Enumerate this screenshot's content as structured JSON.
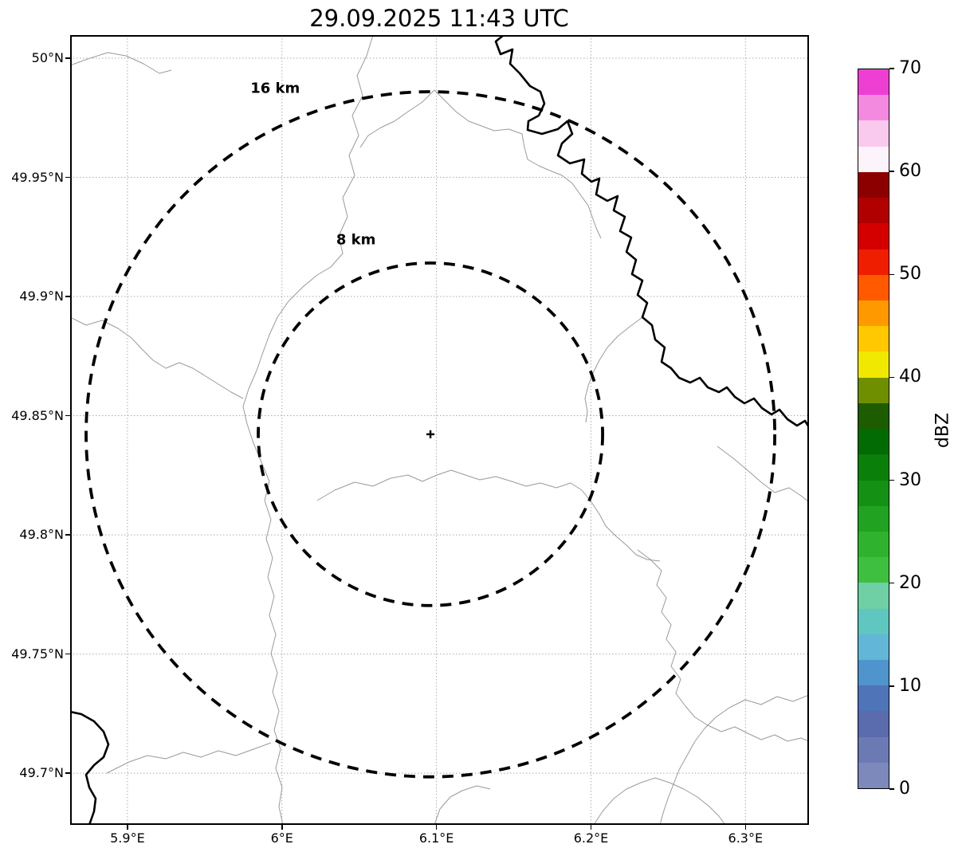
{
  "title": "29.09.2025 11:43 UTC",
  "chart_data": {
    "type": "map",
    "subtype": "weather-radar-range-ring-map",
    "title": "29.09.2025 11:43 UTC",
    "grid": true,
    "x_axis": {
      "tick_labels": [
        "5.9°E",
        "6°E",
        "6.1°E",
        "6.2°E",
        "6.3°E"
      ],
      "tick_values": [
        5.9,
        6.0,
        6.1,
        6.2,
        6.3
      ],
      "range": [
        5.8629,
        6.3411
      ]
    },
    "y_axis": {
      "tick_labels": [
        "50°N",
        "49.95°N",
        "49.9°N",
        "49.85°N",
        "49.8°N",
        "49.75°N",
        "49.7°N"
      ],
      "tick_values": [
        50.0,
        49.95,
        49.9,
        49.85,
        49.8,
        49.75,
        49.7
      ],
      "range": [
        49.6783,
        50.0097
      ]
    },
    "radar_center": {
      "lon": 6.0961,
      "lat": 49.8422,
      "marker": "+"
    },
    "range_rings": [
      {
        "km": 8,
        "label": "8 km"
      },
      {
        "km": 16,
        "label": "16 km"
      }
    ],
    "reflectivity_echoes": [],
    "colorbar": {
      "label": "dBZ",
      "min": 0,
      "max": 70,
      "tick_values": [
        0,
        10,
        20,
        30,
        40,
        50,
        60,
        70
      ],
      "tick_labels": [
        "0",
        "10",
        "20",
        "30",
        "40",
        "50",
        "60",
        "70"
      ],
      "segment_step": 2.5,
      "segment_colors_bottom_to_top": [
        "#7d88bb",
        "#6c7ab4",
        "#5a6cae",
        "#4f74b8",
        "#4f94cd",
        "#62b6d8",
        "#5fc6c0",
        "#6ed0a4",
        "#3fbf3f",
        "#2fb32f",
        "#21a321",
        "#149114",
        "#0a7f0a",
        "#036b03",
        "#1d5c00",
        "#6f8f00",
        "#f0e800",
        "#ffc800",
        "#ff9900",
        "#ff5a00",
        "#f01e00",
        "#d40000",
        "#b00000",
        "#8c0000",
        "#fdf3fb",
        "#f9c9ee",
        "#f48ae0",
        "#ee3fd3"
      ]
    },
    "map_paths": {
      "coordinate_space": "plot-pixels 927x991",
      "thin_gray_borders": [
        "M 0 38 L 22 30 L 47 22 L 70 26 L 92 36 L 112 48 L 127 44",
        "M 380 0 L 372 26 L 360 51 L 367 76 L 354 101 L 362 126 L 350 151 L 357 176 L 342 204 L 348 228 L 337 252 L 342 274 L 327 291 L 310 301 L 292 316 L 274 334 L 260 354 L 250 376 L 242 398 L 234 421 L 224 444 L 217 466 L 222 488 L 230 512 L 240 536 L 250 560 L 244 584 L 252 608 L 246 632 L 254 656 L 248 680 L 256 704 L 250 728 L 258 752 L 252 776 L 260 800 L 254 824 L 262 848 L 256 872 L 264 896 L 258 920 L 266 944 L 262 968 L 267 991",
        "M 457 69 L 442 84 L 424 96 L 407 108 L 390 116 L 374 126 L 364 141",
        "M 457 69 L 470 82 L 484 96 L 500 108 L 516 114 L 532 120 L 550 118 L 567 124 L 570 141 L 574 156 L 588 164 L 602 170 L 617 176 L 630 186 L 640 200 L 650 214 L 655 228 L 660 242 L 666 255",
        "M 310 584 L 332 571 L 357 561 L 380 566 L 402 556 L 424 552 L 442 560 L 460 552 L 478 546 L 496 552 L 514 558 L 534 554 L 554 560 L 572 566 L 590 562 L 610 568 L 628 562 L 642 571 L 654 586 L 664 601 L 672 616 L 684 628 L 698 640 L 710 652 L 724 658 L 740 660",
        "M 812 516 L 832 531 L 850 546 L 867 561 L 884 574 L 902 568 L 917 578 L 927 586",
        "M 712 646 L 728 658 L 742 672 L 736 690 L 748 706 L 742 724 L 754 740 L 748 758 L 760 774 L 754 792 L 766 808 L 760 826 L 772 842 L 784 856 L 800 866 L 817 874 L 834 868 L 850 876 L 867 884 L 884 878 L 900 886 L 917 882 L 927 886",
        "M 927 828 L 907 836 L 887 830 L 867 840 L 847 834 L 827 844 L 810 856 L 796 870 L 784 886 L 774 904 L 764 922 L 757 940 L 750 958 L 744 976 L 740 991",
        "M 657 991 L 668 974 L 682 958 L 698 946 L 716 938 L 734 932 L 752 938 L 770 946 L 787 956 L 802 968 L 814 980 L 822 991",
        "M 46 926 L 74 912 L 97 904 L 120 908 L 142 900 L 164 906 L 186 898 L 208 904 L 230 896 L 252 888",
        "M 457 991 L 464 971 L 477 956 L 492 948 L 510 942 L 527 946",
        "M 0 354 L 20 364 L 40 358 L 60 368 L 77 380 L 90 394 L 104 408 L 120 418 L 137 411 L 154 418 L 170 428 L 186 438 L 202 448 L 217 456",
        "M 718 354 L 702 366 L 687 378 L 674 392 L 664 408 L 656 424 L 650 440 L 646 456 L 649 472 L 647 486"
      ],
      "thick_black_borders": [
        "M 544 0 L 534 8 L 540 24 L 555 18 L 552 36 L 564 48 L 577 64 L 590 71 L 595 86 L 588 101 L 575 108 L 574 119 L 592 124 L 612 118 L 624 108 L 630 124 L 617 136 L 612 151 L 627 161 L 645 156 L 642 174 L 654 184 L 664 180 L 660 200 L 674 208 L 687 202 L 682 220 L 696 228 L 690 246 L 704 254 L 698 272 L 710 282 L 705 300 L 718 308 L 712 326 L 724 336 L 718 354 L 730 364 L 734 382 L 746 392 L 742 410 L 754 418 L 764 430 L 778 436 L 790 430 L 800 442 L 814 448 L 824 442 L 834 454 L 846 462 L 858 456 L 868 468 L 880 476 L 890 470 L 900 482 L 912 490 L 922 484 L 927 492",
        "M 0 849 L 14 852 L 30 861 L 42 874 L 48 890 L 42 906 L 30 916 L 20 928 L 24 944 L 32 958 L 30 974 L 24 991"
      ]
    }
  }
}
